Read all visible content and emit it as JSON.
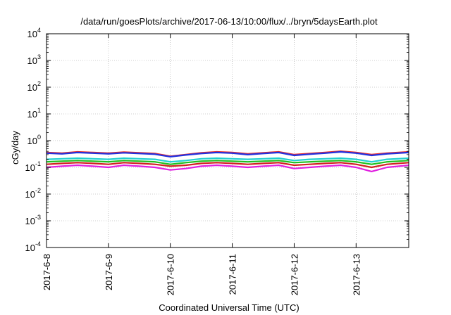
{
  "chart_data": {
    "type": "line",
    "title": "/data/run/goesPlots/archive/2017-06-13/10:00/flux/../bryn/5daysEarth.plot",
    "xlabel": "Coordinated Universal Time (UTC)",
    "ylabel": "cGy/day",
    "yscale": "log",
    "ylim": [
      0.0001,
      10000
    ],
    "xlim": [
      0,
      5.85
    ],
    "x_tick_labels": [
      "2017-6-8",
      "2017-6-9",
      "2017-6-10",
      "2017-6-11",
      "2017-6-12",
      "2017-6-13"
    ],
    "x_tick_positions": [
      0,
      1,
      2,
      3,
      4,
      5
    ],
    "y_ticks": [
      {
        "value": 0.0001,
        "base": "10",
        "exp": "-4"
      },
      {
        "value": 0.001,
        "base": "10",
        "exp": "-3"
      },
      {
        "value": 0.01,
        "base": "10",
        "exp": "-2"
      },
      {
        "value": 0.1,
        "base": "10",
        "exp": "-1"
      },
      {
        "value": 1,
        "base": "10",
        "exp": "0"
      },
      {
        "value": 10,
        "base": "10",
        "exp": "1"
      },
      {
        "value": 100,
        "base": "10",
        "exp": "2"
      },
      {
        "value": 1000,
        "base": "10",
        "exp": "3"
      },
      {
        "value": 10000,
        "base": "10",
        "exp": "4"
      }
    ],
    "grid": true,
    "grid_style": "dotted",
    "legend": "none",
    "series": [
      {
        "color": "#e020e0",
        "x": [
          0,
          0.25,
          0.5,
          0.75,
          1,
          1.25,
          1.5,
          1.75,
          2,
          2.25,
          2.5,
          2.75,
          3,
          3.25,
          3.5,
          3.75,
          4,
          4.25,
          4.5,
          4.75,
          5,
          5.25,
          5.5,
          5.85
        ],
        "values": [
          0.1,
          0.11,
          0.12,
          0.11,
          0.1,
          0.12,
          0.11,
          0.1,
          0.08,
          0.09,
          0.11,
          0.12,
          0.11,
          0.1,
          0.11,
          0.12,
          0.09,
          0.1,
          0.11,
          0.12,
          0.1,
          0.07,
          0.1,
          0.12
        ]
      },
      {
        "color": "#d22020",
        "x": [
          0,
          0.25,
          0.5,
          0.75,
          1,
          1.25,
          1.5,
          1.75,
          2,
          2.25,
          2.5,
          2.75,
          3,
          3.25,
          3.5,
          3.75,
          4,
          4.25,
          4.5,
          4.75,
          5,
          5.25,
          5.5,
          5.85
        ],
        "values": [
          0.13,
          0.14,
          0.15,
          0.14,
          0.13,
          0.15,
          0.14,
          0.13,
          0.11,
          0.12,
          0.14,
          0.15,
          0.14,
          0.13,
          0.14,
          0.15,
          0.12,
          0.13,
          0.14,
          0.15,
          0.13,
          0.1,
          0.13,
          0.15
        ]
      },
      {
        "color": "#20c020",
        "x": [
          0,
          0.25,
          0.5,
          0.75,
          1,
          1.25,
          1.5,
          1.75,
          2,
          2.25,
          2.5,
          2.75,
          3,
          3.25,
          3.5,
          3.75,
          4,
          4.25,
          4.5,
          4.75,
          5,
          5.25,
          5.5,
          5.85
        ],
        "values": [
          0.16,
          0.17,
          0.18,
          0.17,
          0.16,
          0.18,
          0.17,
          0.16,
          0.13,
          0.15,
          0.17,
          0.18,
          0.17,
          0.16,
          0.17,
          0.18,
          0.15,
          0.16,
          0.17,
          0.18,
          0.16,
          0.13,
          0.16,
          0.18
        ]
      },
      {
        "color": "#20d0d0",
        "x": [
          0,
          0.25,
          0.5,
          0.75,
          1,
          1.25,
          1.5,
          1.75,
          2,
          2.25,
          2.5,
          2.75,
          3,
          3.25,
          3.5,
          3.75,
          4,
          4.25,
          4.5,
          4.75,
          5,
          5.25,
          5.5,
          5.85
        ],
        "values": [
          0.2,
          0.21,
          0.22,
          0.21,
          0.2,
          0.22,
          0.21,
          0.2,
          0.16,
          0.18,
          0.21,
          0.22,
          0.21,
          0.2,
          0.21,
          0.22,
          0.18,
          0.2,
          0.21,
          0.22,
          0.2,
          0.16,
          0.2,
          0.22
        ]
      },
      {
        "color": "#e83030",
        "x": [
          0,
          0.25,
          0.5,
          0.75,
          1,
          1.25,
          1.5,
          1.75,
          2,
          2.25,
          2.5,
          2.75,
          3,
          3.25,
          3.5,
          3.75,
          4,
          4.25,
          4.5,
          4.75,
          5,
          5.25,
          5.5,
          5.85
        ],
        "values": [
          0.36,
          0.34,
          0.38,
          0.36,
          0.34,
          0.37,
          0.35,
          0.33,
          0.26,
          0.3,
          0.35,
          0.38,
          0.36,
          0.32,
          0.35,
          0.38,
          0.3,
          0.33,
          0.36,
          0.4,
          0.36,
          0.3,
          0.34,
          0.38
        ]
      },
      {
        "color": "#2030e0",
        "x": [
          0,
          0.25,
          0.5,
          0.75,
          1,
          1.25,
          1.5,
          1.75,
          2,
          2.25,
          2.5,
          2.75,
          3,
          3.25,
          3.5,
          3.75,
          4,
          4.25,
          4.5,
          4.75,
          5,
          5.25,
          5.5,
          5.85
        ],
        "values": [
          0.34,
          0.32,
          0.36,
          0.34,
          0.32,
          0.35,
          0.33,
          0.31,
          0.25,
          0.29,
          0.33,
          0.36,
          0.34,
          0.3,
          0.33,
          0.36,
          0.28,
          0.31,
          0.34,
          0.38,
          0.34,
          0.28,
          0.32,
          0.36
        ]
      }
    ]
  }
}
